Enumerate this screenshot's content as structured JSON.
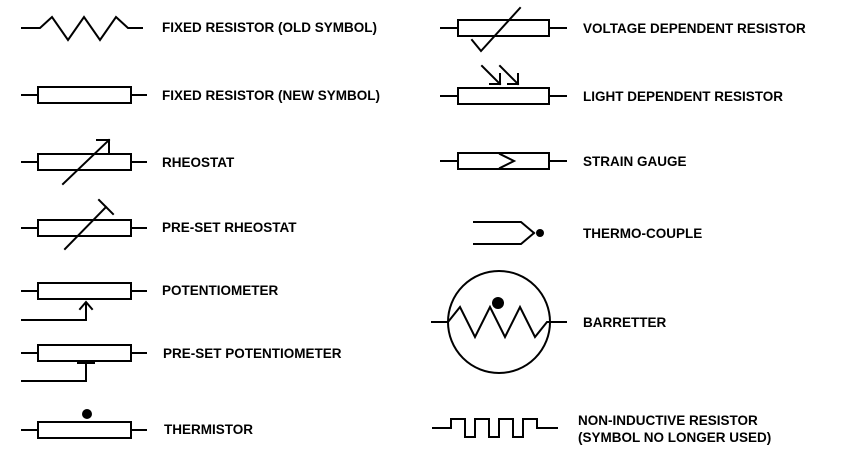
{
  "symbols": {
    "fixed_resistor_old": "FIXED RESISTOR   (OLD SYMBOL)",
    "fixed_resistor_new": "FIXED RESISTOR   (NEW SYMBOL)",
    "rheostat": "RHEOSTAT",
    "preset_rheostat": "PRE-SET RHEOSTAT",
    "potentiometer": "POTENTIOMETER",
    "preset_potentiometer": "PRE-SET POTENTIOMETER",
    "thermistor": "THERMISTOR",
    "voltage_dependent_resistor": "VOLTAGE DEPENDENT RESISTOR",
    "light_dependent_resistor": "LIGHT DEPENDENT RESISTOR",
    "strain_gauge": "STRAIN GAUGE",
    "thermocouple": "THERMO-COUPLE",
    "barretter": "BARRETTER",
    "non_inductive_resistor": {
      "line1": "NON-INDUCTIVE RESISTOR",
      "line2": "(SYMBOL NO LONGER USED)"
    }
  }
}
